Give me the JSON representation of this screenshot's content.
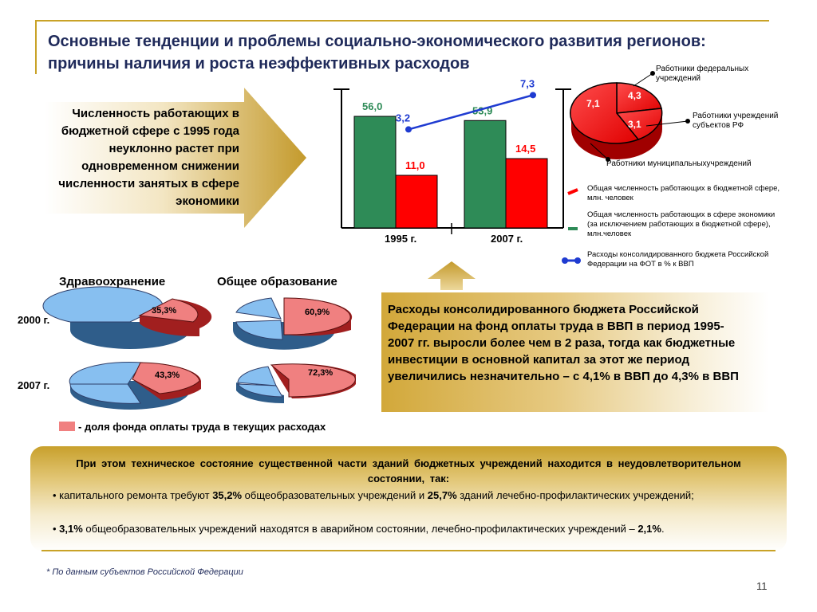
{
  "title": {
    "line1": "Основные тенденции и проблемы социально-экономического развития регионов:",
    "line2": "причины наличия и роста неэффективных расходов"
  },
  "arrow_text": "Численность работающих в бюджетной сфере с 1995 года неуклонно растет при одновременном снижении численности занятых в сфере экономики",
  "chart_data": [
    {
      "type": "bar",
      "categories": [
        "1995 г.",
        "2007 г."
      ],
      "series": [
        {
          "name": "Общая численность работающих в сфере экономики (за исключением работающих в бюджетной сфере), млн.человек",
          "values": [
            56.0,
            53.9
          ],
          "labels": [
            "56,0",
            "53,9"
          ],
          "color": "#2e8b57"
        },
        {
          "name": "Общая численность работающих в бюджетной сфере, млн. человек",
          "values": [
            11.0,
            14.5
          ],
          "labels": [
            "11,0",
            "14,5"
          ],
          "color": "#ff0000"
        },
        {
          "name": "Расходы консолидированного бюджета Российской Федерации на ФОТ в % к ВВП",
          "values": [
            3.2,
            7.3
          ],
          "labels": [
            "3,2",
            "7,3"
          ],
          "color": "#1f3bd1"
        }
      ]
    },
    {
      "type": "pie",
      "slices": [
        {
          "name": "Работники федеральных учреждений",
          "value": 4.3,
          "label": "4,3"
        },
        {
          "name": "Работники учреждений субъектов РФ",
          "value": 3.1,
          "label": "3,1"
        },
        {
          "name": "Работники муниципальныхучреждений",
          "value": 7.1,
          "label": "7,1"
        }
      ]
    },
    {
      "type": "pie",
      "group": "Здравоохранение",
      "year": "2000 г.",
      "value": 35.3,
      "label": "35,3%"
    },
    {
      "type": "pie",
      "group": "Общее образование",
      "year": "2000 г.",
      "value": 60.9,
      "label": "60,9%"
    },
    {
      "type": "pie",
      "group": "Здравоохранение",
      "year": "2007 г.",
      "value": 43.3,
      "label": "43,3%"
    },
    {
      "type": "pie",
      "group": "Общее образование",
      "year": "2007 г.",
      "value": 72.3,
      "label": "72,3%"
    }
  ],
  "years": {
    "y1995": "1995  г.",
    "y2007": "2007  г."
  },
  "legend": {
    "budget_staff": "Общая численность работающих в бюджетной сфере, млн. человек",
    "economy_staff": "Общая численность работающих в сфере экономики (за исключением работающих в бюджетной сфере), млн.человек",
    "payroll": "Расходы консолидированного бюджета Российской Федерации на ФОТ в % к ВВП"
  },
  "pie_labels": {
    "federal": "Работники федеральных учреждений",
    "subjects": "Работники учреждений субъектов РФ",
    "municipal": "Работники муниципальныхучреждений"
  },
  "small_pies": {
    "health": "Здравоохранение",
    "education": "Общее образование",
    "year2000": "2000 г.",
    "year2007": "2007 г.",
    "legend": "- доля фонда оплаты труда в текущих расходах"
  },
  "budget_text": "Расходы консолидированного бюджета Российской Федерации на фонд оплаты труда в ВВП в период 1995-2007 гг. выросли более чем в 2 раза, тогда как бюджетные инвестиции в основной капитал за этот же период увеличились незначительно – с 4,1% в ВВП до 4,3% в ВВП",
  "bottom": {
    "head": "При этом техническое состояние существенной части зданий бюджетных учреждений находится в неудовлетворительном состоянии, так:",
    "b1_pre": "• капитального ремонта требуют ",
    "b1_v1": "35,2%",
    "b1_mid": " общеобразовательных учреждений и ",
    "b1_v2": "25,7%",
    "b1_post": " зданий лечебно-профилактических учреждений;",
    "b2_pre": "• ",
    "b2_v1": "3,1%",
    "b2_mid": " общеобразовательных учреждений находятся в аварийном состоянии, лечебно-профилактических учреждений – ",
    "b2_v2": "2,1%",
    "b2_post": "."
  },
  "footnote": "* По данным субъектов Российской Федерации",
  "page_number": "11",
  "colors": {
    "gold": "#c9a227",
    "green": "#2e8b57",
    "red": "#ff0000",
    "blue": "#1f3bd1",
    "pie_red": "#f08080",
    "pie_blue": "#87bff0"
  }
}
